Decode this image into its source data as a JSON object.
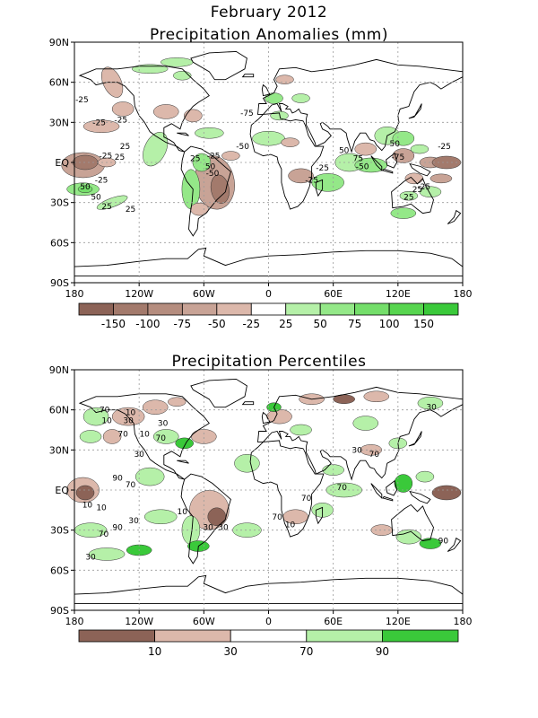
{
  "header": {
    "title": "February 2012",
    "panel1_title": "Precipitation Anomalies (mm)",
    "panel2_title": "Precipitation Percentiles"
  },
  "axes": {
    "lat_labels": [
      "90N",
      "60N",
      "30N",
      "EQ",
      "30S",
      "60S",
      "90S"
    ],
    "lon_labels": [
      "180",
      "120W",
      "60W",
      "0",
      "60E",
      "120E",
      "180"
    ]
  },
  "panel1": {
    "colorbar": {
      "colors": [
        "#8c6357",
        "#a37a6c",
        "#b58d7f",
        "#c8a396",
        "#dcb8ab",
        "#ffffff",
        "#b5f0a8",
        "#94e888",
        "#74de6a",
        "#57d54f",
        "#3ac93a"
      ],
      "labels": [
        "-150",
        "-100",
        "-75",
        "-50",
        "-25",
        "25",
        "50",
        "75",
        "100",
        "150"
      ]
    },
    "contour_labels": [
      "-25",
      "-25",
      "-25",
      "25",
      "-25",
      "25",
      "50",
      "25",
      "-25",
      "50",
      "25",
      "25",
      "-50",
      "-25",
      "50",
      "-75",
      "-50",
      "-25",
      "-25",
      "50",
      "75",
      "-50",
      "50",
      "-75",
      "-25",
      "25",
      "25",
      "-25"
    ]
  },
  "panel2": {
    "colorbar": {
      "colors": [
        "#8c6357",
        "#dcb8ab",
        "#ffffff",
        "#b5f0a8",
        "#3ac93a"
      ],
      "labels": [
        "10",
        "30",
        "70",
        "90"
      ]
    },
    "contour_labels": [
      "30",
      "10",
      "70",
      "10",
      "30",
      "70",
      "30",
      "10",
      "70",
      "30",
      "90",
      "70",
      "10",
      "10",
      "30",
      "90",
      "30",
      "70",
      "10",
      "30",
      "70",
      "70",
      "30",
      "70",
      "90",
      "70",
      "10",
      "30"
    ]
  }
}
